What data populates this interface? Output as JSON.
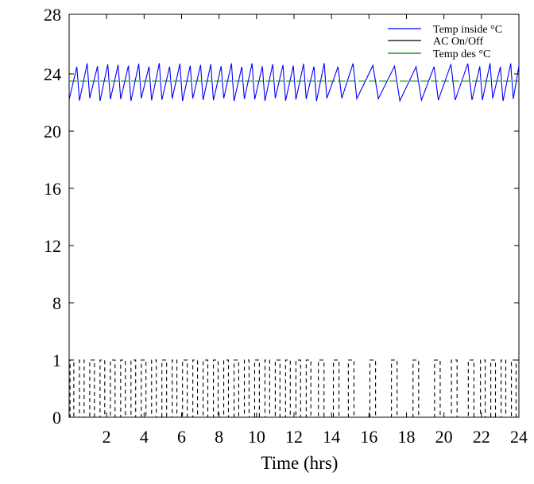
{
  "chart_data": {
    "type": "line",
    "title": "",
    "xlabel": "Time (hrs)",
    "ylabel": "",
    "xlim": [
      0,
      24
    ],
    "x_ticks": [
      2,
      4,
      6,
      8,
      10,
      12,
      14,
      16,
      18,
      20,
      22,
      24
    ],
    "y_ticks": [
      {
        "value": 0,
        "label": "0"
      },
      {
        "value": 1,
        "label": "1"
      },
      {
        "value": 8,
        "label": "8"
      },
      {
        "value": 12,
        "label": "12"
      },
      {
        "value": 16,
        "label": "16"
      },
      {
        "value": 20,
        "label": "20"
      },
      {
        "value": 24,
        "label": "24"
      },
      {
        "value": 28,
        "label": "28"
      }
    ],
    "grid": false,
    "legend_position": "top-right",
    "series": [
      {
        "name": "Temp inside °C",
        "color": "#0000ff",
        "style": "solid",
        "cycles": [
          {
            "start": 0.0,
            "period": 0.55
          },
          {
            "start": 13.75,
            "period": 0.8
          },
          {
            "start": 15.35,
            "period": 1.15
          },
          {
            "start": 18.8,
            "period": 0.9
          },
          {
            "start": 21.5,
            "period": 0.55
          }
        ],
        "min": 22.2,
        "max": 24.6
      },
      {
        "name": "AC On/Off",
        "color": "#000000",
        "style": "dashed",
        "on_intervals": [
          [
            0.05,
            0.25
          ],
          [
            0.55,
            0.8
          ],
          [
            1.1,
            1.35
          ],
          [
            1.65,
            1.9
          ],
          [
            2.2,
            2.45
          ],
          [
            2.75,
            3.0
          ],
          [
            3.3,
            3.55
          ],
          [
            3.85,
            4.1
          ],
          [
            4.4,
            4.65
          ],
          [
            4.95,
            5.2
          ],
          [
            5.5,
            5.75
          ],
          [
            6.05,
            6.3
          ],
          [
            6.6,
            6.85
          ],
          [
            7.15,
            7.4
          ],
          [
            7.7,
            7.95
          ],
          [
            8.25,
            8.5
          ],
          [
            8.8,
            9.05
          ],
          [
            9.35,
            9.6
          ],
          [
            9.9,
            10.15
          ],
          [
            10.45,
            10.7
          ],
          [
            11.0,
            11.25
          ],
          [
            11.55,
            11.8
          ],
          [
            12.1,
            12.35
          ],
          [
            12.65,
            12.9
          ],
          [
            13.3,
            13.6
          ],
          [
            14.1,
            14.4
          ],
          [
            14.9,
            15.2
          ],
          [
            16.05,
            16.35
          ],
          [
            17.2,
            17.5
          ],
          [
            18.35,
            18.65
          ],
          [
            19.5,
            19.8
          ],
          [
            20.4,
            20.7
          ],
          [
            21.3,
            21.6
          ],
          [
            21.95,
            22.2
          ],
          [
            22.5,
            22.75
          ],
          [
            23.05,
            23.3
          ],
          [
            23.6,
            23.85
          ]
        ]
      },
      {
        "name": "Temp des °C",
        "color": "#008000",
        "style": "dashed",
        "value": 23.5
      }
    ]
  }
}
